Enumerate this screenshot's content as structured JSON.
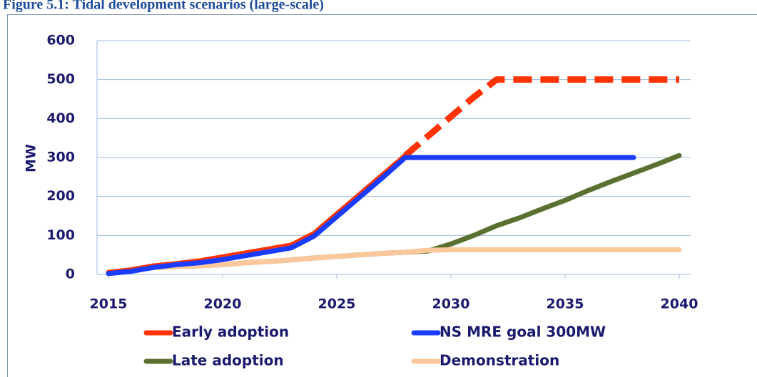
{
  "chart_data": {
    "type": "line",
    "title": "Figure 5.1: Tidal development scenarios (large-scale)",
    "y_label": "MW",
    "xlim": [
      2014.5,
      2040.5
    ],
    "xticks": [
      2015,
      2020,
      2025,
      2030,
      2035,
      2040
    ],
    "ylim": [
      0,
      600
    ],
    "yticks": [
      0,
      100,
      200,
      300,
      400,
      500,
      600
    ],
    "grid": true,
    "legend": "bottom",
    "series": [
      {
        "name": "Early adoption",
        "color": "#ff3300",
        "dash_from_x": 2028,
        "x": [
          2015,
          2016,
          2017,
          2018,
          2019,
          2020,
          2021,
          2022,
          2023,
          2024,
          2025,
          2026,
          2027,
          2028,
          2029,
          2030,
          2031,
          2032,
          2033,
          2034,
          2035,
          2036,
          2037,
          2038,
          2039,
          2040
        ],
        "values": [
          5,
          12,
          22,
          28,
          35,
          45,
          55,
          65,
          75,
          105,
          155,
          205,
          255,
          305,
          355,
          405,
          455,
          500,
          500,
          500,
          500,
          500,
          500,
          500,
          500,
          500
        ]
      },
      {
        "name": "NS MRE goal 300MW",
        "color": "#1a3cff",
        "x": [
          2015,
          2016,
          2017,
          2018,
          2019,
          2020,
          2021,
          2022,
          2023,
          2024,
          2025,
          2026,
          2027,
          2028,
          2029,
          2030,
          2031,
          2032,
          2033,
          2034,
          2035,
          2036,
          2037,
          2038
        ],
        "values": [
          2,
          8,
          18,
          25,
          30,
          38,
          48,
          58,
          68,
          98,
          148,
          198,
          248,
          300,
          300,
          300,
          300,
          300,
          300,
          300,
          300,
          300,
          300,
          300
        ]
      },
      {
        "name": "Late adoption",
        "color": "#5a7030",
        "x": [
          2015,
          2016,
          2017,
          2018,
          2019,
          2020,
          2021,
          2022,
          2023,
          2024,
          2025,
          2026,
          2027,
          2028,
          2029,
          2030,
          2031,
          2032,
          2033,
          2034,
          2035,
          2036,
          2037,
          2038,
          2039,
          2040
        ],
        "values": [
          5,
          10,
          18,
          20,
          22,
          25,
          30,
          33,
          37,
          42,
          46,
          50,
          54,
          57,
          60,
          78,
          100,
          125,
          145,
          168,
          190,
          215,
          238,
          260,
          282,
          305
        ]
      },
      {
        "name": "Demonstration",
        "color": "#fac89a",
        "x": [
          2015,
          2016,
          2017,
          2018,
          2019,
          2020,
          2021,
          2022,
          2023,
          2024,
          2025,
          2026,
          2027,
          2028,
          2029,
          2030,
          2031,
          2032,
          2033,
          2034,
          2035,
          2036,
          2037,
          2038,
          2039,
          2040
        ],
        "values": [
          5,
          10,
          18,
          20,
          22,
          25,
          30,
          33,
          37,
          42,
          46,
          50,
          54,
          57,
          62,
          63,
          63,
          63,
          63,
          63,
          63,
          63,
          63,
          63,
          63,
          63
        ]
      }
    ]
  }
}
